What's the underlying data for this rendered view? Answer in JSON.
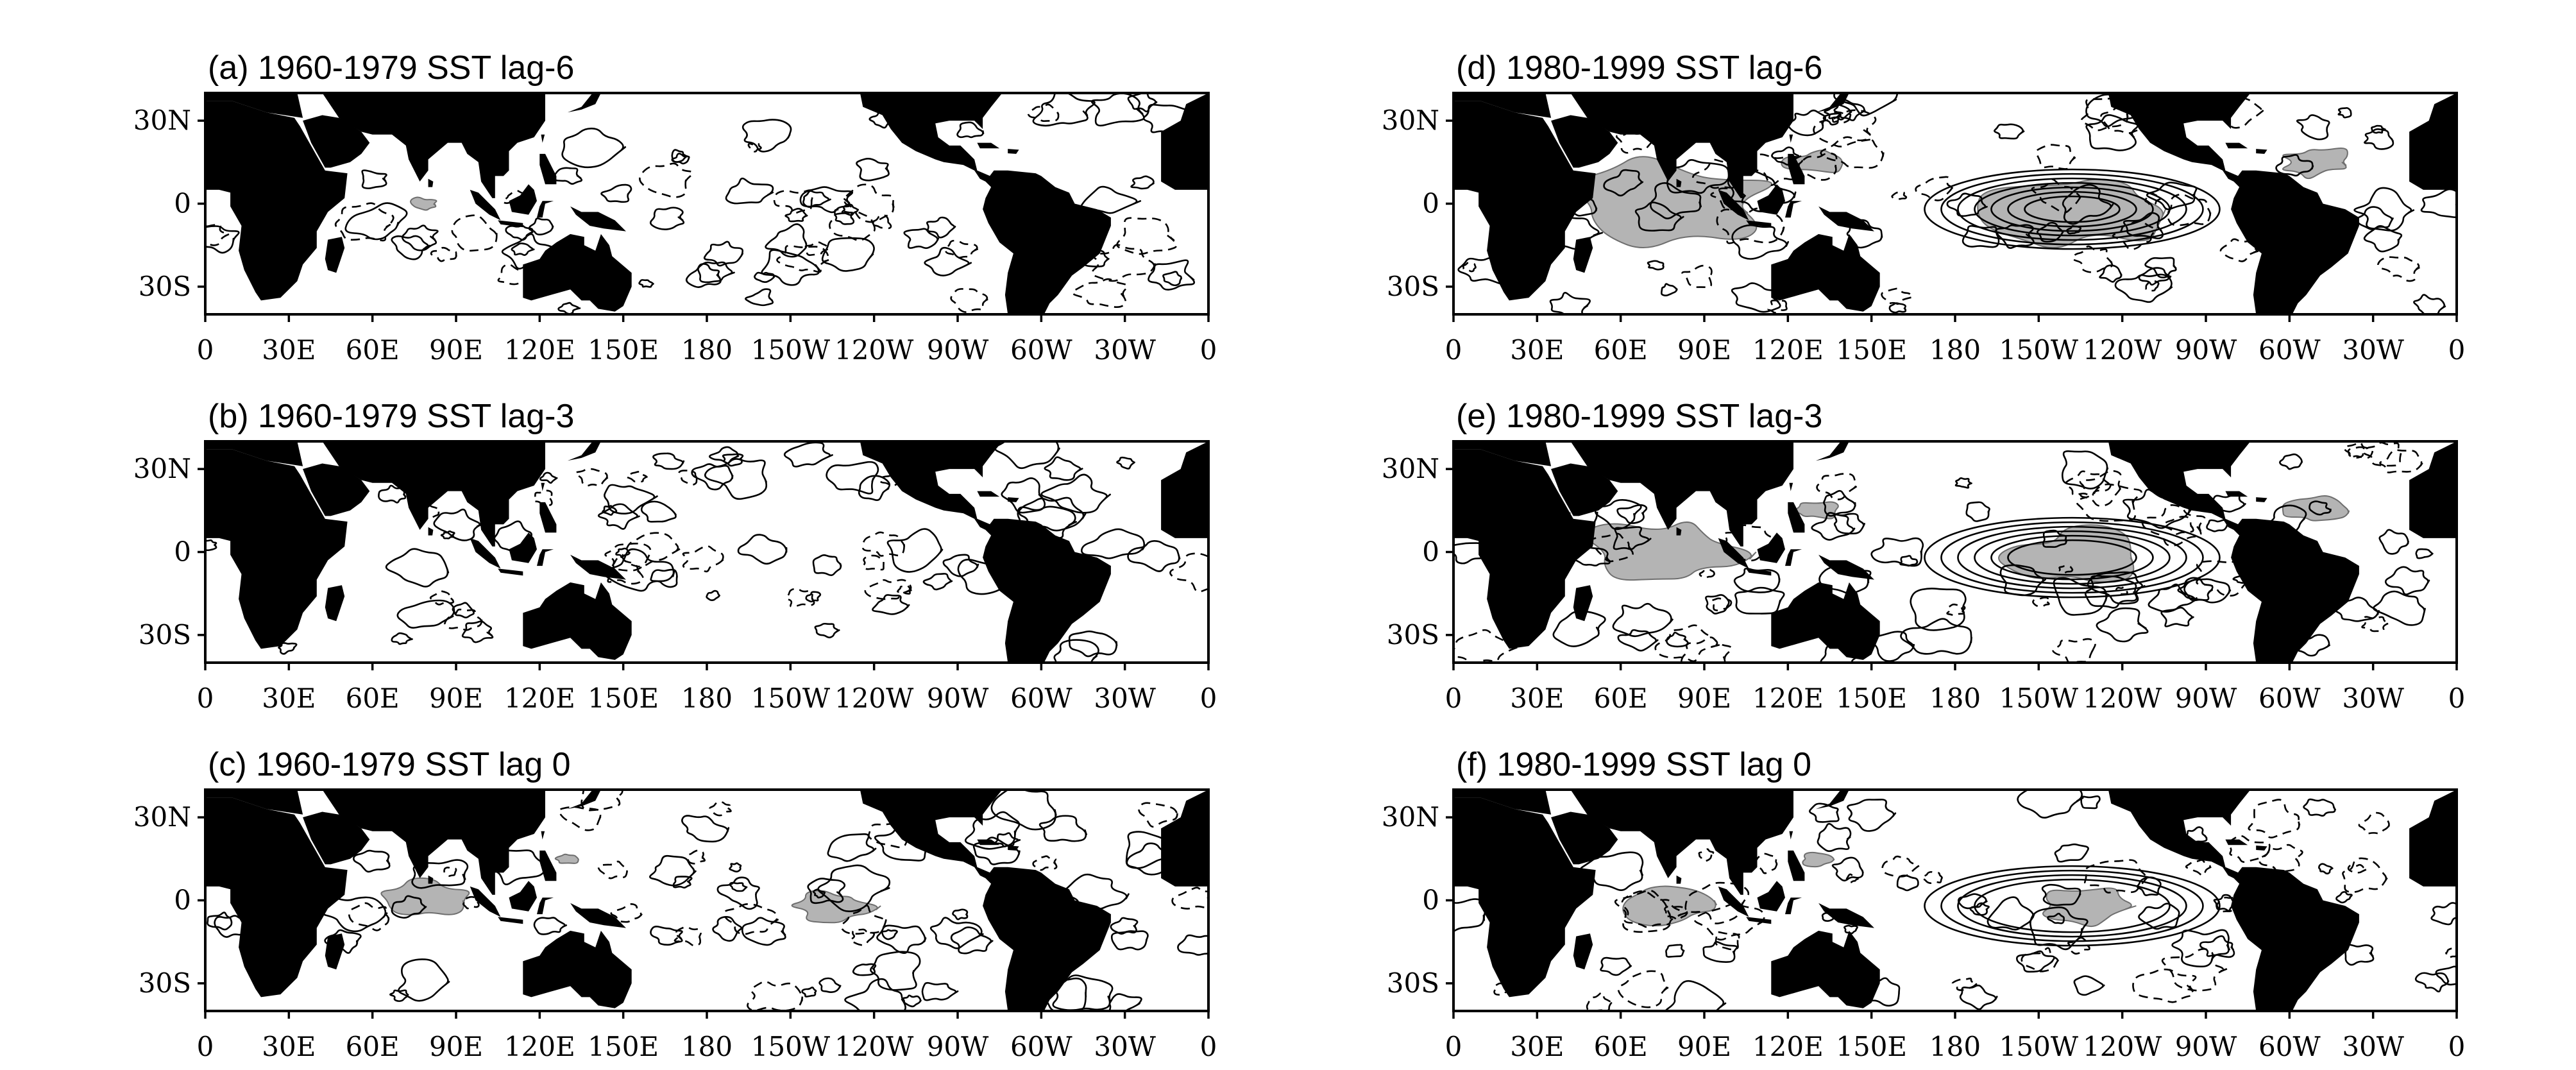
{
  "figure": {
    "panels": [
      {
        "id": "a",
        "title": "(a)  1960-1979 SST lag-6",
        "intensity": 0.15
      },
      {
        "id": "b",
        "title": "(b)  1960-1979 SST lag-3",
        "intensity": 0.0
      },
      {
        "id": "c",
        "title": "(c)  1960-1979 SST lag 0",
        "intensity": 0.45
      },
      {
        "id": "d",
        "title": "(d)  1980-1999 SST lag-6",
        "intensity": 1.0
      },
      {
        "id": "e",
        "title": "(e)  1980-1999 SST lag-3",
        "intensity": 0.8
      },
      {
        "id": "f",
        "title": "(f)  1980-1999 SST lag 0",
        "intensity": 0.55
      }
    ],
    "x_ticks": [
      "0",
      "30E",
      "60E",
      "90E",
      "120E",
      "150E",
      "180",
      "150W",
      "120W",
      "90W",
      "60W",
      "30W",
      "0"
    ],
    "y_ticks": [
      "30N",
      "0",
      "30S"
    ],
    "colors": {
      "land": "#000000",
      "shading": "#b4b4b4",
      "contours": "#000000",
      "background": "#ffffff"
    }
  }
}
